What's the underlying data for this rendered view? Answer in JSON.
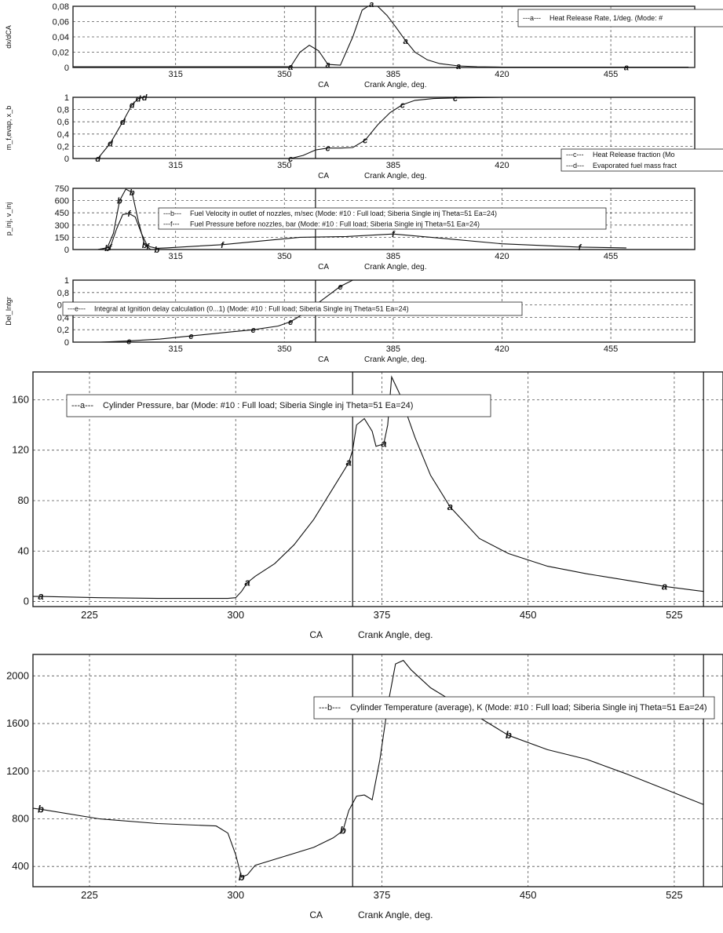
{
  "chart_data": [
    {
      "type": "line",
      "ylabel": "dx/dCA",
      "x_axis_caption": "CA",
      "xlabel": "Crank Angle, deg.",
      "xlim": [
        282,
        482
      ],
      "ylim": [
        0,
        0.08
      ],
      "x_ticks": [
        315,
        350,
        385,
        420,
        455
      ],
      "y_ticks": [
        "0",
        "0,02",
        "0,04",
        "0,06",
        "0,08"
      ],
      "y_tick_values": [
        0,
        0.02,
        0.04,
        0.06,
        0.08
      ],
      "grid": true,
      "legend_position": "top-right",
      "vlines": [
        360
      ],
      "series": [
        {
          "name": "Heat Release Rate, 1/deg. (Mode: #",
          "marker": "a",
          "x": [
            282,
            352,
            355,
            358,
            361,
            364,
            368,
            372,
            375,
            378,
            380,
            383,
            386,
            389,
            392,
            396,
            400,
            406,
            412,
            420,
            440,
            460,
            480
          ],
          "y": [
            0.001,
            0.001,
            0.02,
            0.029,
            0.022,
            0.004,
            0.003,
            0.04,
            0.075,
            0.083,
            0.08,
            0.068,
            0.052,
            0.035,
            0.02,
            0.01,
            0.005,
            0.002,
            0.001,
            0.0005,
            0.0005,
            0.0005,
            0.0005
          ]
        }
      ]
    },
    {
      "type": "line",
      "ylabel": "m_f,evap, x_b",
      "x_axis_caption": "CA",
      "xlabel": "Crank Angle, deg.",
      "xlim": [
        282,
        482
      ],
      "ylim": [
        0,
        1
      ],
      "x_ticks": [
        315,
        350,
        385,
        420,
        455
      ],
      "y_ticks": [
        "0",
        "0,2",
        "0,4",
        "0,6",
        "0,8",
        "1"
      ],
      "y_tick_values": [
        0,
        0.2,
        0.4,
        0.6,
        0.8,
        1
      ],
      "grid": true,
      "legend_position": "bottom-right",
      "vlines": [
        360
      ],
      "series": [
        {
          "name": "Heat Release fraction (Mo",
          "marker": "c",
          "x": [
            282,
            352,
            356,
            360,
            364,
            368,
            372,
            376,
            380,
            384,
            388,
            392,
            398,
            405,
            420,
            480
          ],
          "y": [
            0,
            0,
            0.05,
            0.14,
            0.17,
            0.17,
            0.18,
            0.3,
            0.55,
            0.75,
            0.88,
            0.95,
            0.98,
            0.99,
            1,
            1
          ]
        },
        {
          "name": "Evaporated fuel mass fract",
          "marker": "d",
          "x": [
            282,
            290,
            294,
            298,
            301,
            303,
            305,
            482
          ],
          "y": [
            0,
            0,
            0.25,
            0.6,
            0.88,
            0.98,
            1,
            1
          ]
        }
      ]
    },
    {
      "type": "line",
      "ylabel": "p_inj, v_inj",
      "x_axis_caption": "CA",
      "xlabel": "Crank Angle, deg.",
      "xlim": [
        282,
        482
      ],
      "ylim": [
        0,
        750
      ],
      "x_ticks": [
        315,
        350,
        385,
        420,
        455
      ],
      "y_ticks": [
        "0",
        "150",
        "300",
        "450",
        "600",
        "750"
      ],
      "y_tick_values": [
        0,
        150,
        300,
        450,
        600,
        750
      ],
      "grid": true,
      "legend_position": "center",
      "vlines": [
        360
      ],
      "series": [
        {
          "name": "Fuel Velocity in outlet of nozzles, m/sec (Mode: #10 : Full load; Siberia Single inj Theta=51 Ea=24)",
          "marker": "b",
          "x": [
            290,
            293,
            295,
            297,
            299,
            301,
            303,
            305,
            307,
            309,
            480
          ],
          "y": [
            0,
            20,
            200,
            600,
            740,
            700,
            350,
            60,
            0,
            0,
            0
          ]
        },
        {
          "name": "Fuel Pressure before nozzles, bar (Mode: #10 : Full load; Siberia Single inj Theta=51 Ea=24)",
          "marker": "f",
          "x": [
            290,
            294,
            296,
            298,
            300,
            302,
            304,
            306,
            309,
            312,
            330,
            355,
            370,
            385,
            400,
            420,
            445,
            460
          ],
          "y": [
            0,
            30,
            250,
            430,
            440,
            400,
            200,
            40,
            15,
            20,
            60,
            150,
            160,
            190,
            140,
            70,
            30,
            20
          ]
        }
      ]
    },
    {
      "type": "line",
      "ylabel": "Del_Intgr",
      "x_axis_caption": "CA",
      "xlabel": "Crank Angle, deg.",
      "xlim": [
        282,
        482
      ],
      "ylim": [
        0,
        1
      ],
      "x_ticks": [
        315,
        350,
        385,
        420,
        455
      ],
      "y_ticks": [
        "0",
        "0,2",
        "0,4",
        "0,6",
        "0,8",
        "1"
      ],
      "y_tick_values": [
        0,
        0.2,
        0.4,
        0.6,
        0.8,
        1
      ],
      "grid": true,
      "legend_position": "top-left",
      "vlines": [
        360
      ],
      "series": [
        {
          "name": "Integral at Ignition delay calculation (0...1) (Mode: #10 : Full load; Siberia Single inj Theta=51 Ea=24)",
          "marker": "e",
          "x": [
            291,
            300,
            310,
            320,
            330,
            340,
            348,
            352,
            356,
            360,
            364,
            368,
            372
          ],
          "y": [
            0,
            0.02,
            0.05,
            0.1,
            0.15,
            0.2,
            0.26,
            0.33,
            0.45,
            0.6,
            0.75,
            0.9,
            1
          ]
        }
      ]
    },
    {
      "type": "line",
      "x_axis_caption": "CA",
      "xlabel": "Crank Angle, deg.",
      "xlim": [
        196,
        550
      ],
      "ylim": [
        -4,
        182
      ],
      "x_ticks": [
        225,
        300,
        375,
        450,
        525
      ],
      "y_ticks": [
        "0",
        "40",
        "80",
        "120",
        "160"
      ],
      "y_tick_values": [
        0,
        40,
        80,
        120,
        160
      ],
      "grid": true,
      "legend_position": "top-left",
      "vlines": [
        180,
        360,
        540
      ],
      "series": [
        {
          "name": "Cylinder Pressure, bar (Mode: #10 : Full load; Siberia Single inj Theta=51 Ea=24)",
          "marker": "a",
          "x": [
            180,
            200,
            230,
            260,
            296,
            300,
            303,
            306,
            310,
            320,
            330,
            340,
            350,
            358,
            360,
            362,
            366,
            370,
            372,
            376,
            378,
            380,
            384,
            392,
            400,
            410,
            425,
            440,
            460,
            480,
            500,
            520,
            540
          ],
          "y": [
            4,
            4,
            3,
            2.5,
            2.5,
            3,
            8,
            15,
            20,
            30,
            45,
            65,
            90,
            110,
            120,
            140,
            145,
            135,
            123,
            125,
            140,
            178,
            165,
            130,
            100,
            75,
            50,
            38,
            28,
            22,
            17,
            12,
            8
          ]
        }
      ]
    },
    {
      "type": "line",
      "x_axis_caption": "CA",
      "xlabel": "Crank Angle, deg.",
      "xlim": [
        196,
        550
      ],
      "ylim": [
        230,
        2180
      ],
      "x_ticks": [
        225,
        300,
        375,
        450,
        525
      ],
      "y_ticks": [
        "400",
        "800",
        "1200",
        "1600",
        "2000"
      ],
      "y_tick_values": [
        400,
        800,
        1200,
        1600,
        2000
      ],
      "grid": true,
      "legend_position": "top-right",
      "vlines": [
        180,
        360,
        540
      ],
      "series": [
        {
          "name": "Cylinder Temperature (average), K (Mode: #10 : Full load; Siberia Single inj Theta=51 Ea=24)",
          "marker": "b",
          "x": [
            180,
            200,
            230,
            260,
            290,
            296,
            300,
            303,
            306,
            310,
            320,
            340,
            350,
            355,
            358,
            362,
            366,
            370,
            374,
            378,
            382,
            386,
            390,
            400,
            420,
            440,
            460,
            480,
            500,
            520,
            540
          ],
          "y": [
            920,
            880,
            800,
            760,
            740,
            680,
            500,
            310,
            330,
            410,
            460,
            560,
            640,
            700,
            870,
            990,
            1000,
            960,
            1300,
            1750,
            2100,
            2130,
            2050,
            1900,
            1700,
            1500,
            1380,
            1300,
            1180,
            1050,
            920
          ]
        }
      ]
    }
  ]
}
